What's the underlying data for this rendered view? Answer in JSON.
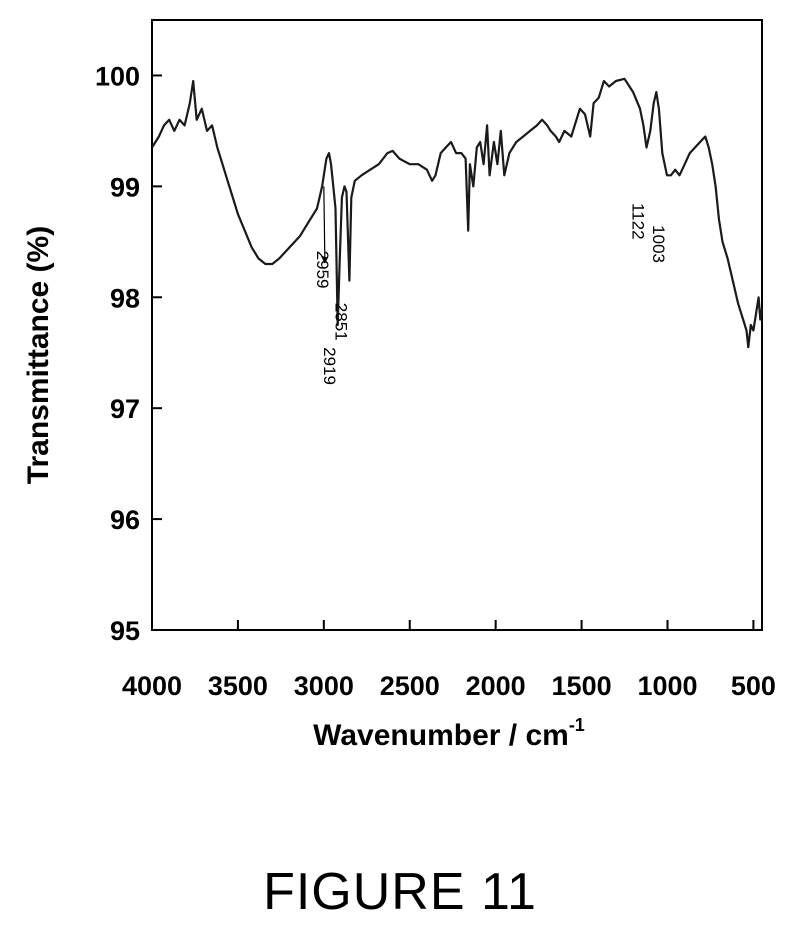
{
  "chart_data": {
    "type": "line",
    "xlabel": "Wavenumber / cm",
    "xlabel_superscript": "-1",
    "ylabel": "Transmittance (%)",
    "xlim": [
      4000,
      450
    ],
    "ylim": [
      95,
      100.5
    ],
    "x_reversed": true,
    "grid": false,
    "x_ticks": [
      4000,
      3500,
      3000,
      2500,
      2000,
      1500,
      1000,
      500
    ],
    "x_tick_labels": [
      "4000",
      "3500",
      "3000",
      "2500",
      "2000",
      "1500",
      "1000",
      "500"
    ],
    "y_ticks": [
      95,
      96,
      97,
      98,
      99,
      100
    ],
    "y_tick_labels": [
      "95",
      "96",
      "97",
      "98",
      "99",
      "100"
    ],
    "series": [
      {
        "color": "#1a1a1a",
        "points": [
          [
            4000,
            99.35
          ],
          [
            3960,
            99.45
          ],
          [
            3930,
            99.55
          ],
          [
            3900,
            99.6
          ],
          [
            3870,
            99.5
          ],
          [
            3840,
            99.6
          ],
          [
            3810,
            99.55
          ],
          [
            3780,
            99.75
          ],
          [
            3760,
            99.95
          ],
          [
            3740,
            99.6
          ],
          [
            3710,
            99.7
          ],
          [
            3680,
            99.5
          ],
          [
            3650,
            99.55
          ],
          [
            3620,
            99.35
          ],
          [
            3590,
            99.2
          ],
          [
            3560,
            99.05
          ],
          [
            3530,
            98.9
          ],
          [
            3500,
            98.75
          ],
          [
            3460,
            98.6
          ],
          [
            3420,
            98.45
          ],
          [
            3380,
            98.35
          ],
          [
            3340,
            98.3
          ],
          [
            3300,
            98.3
          ],
          [
            3260,
            98.35
          ],
          [
            3200,
            98.45
          ],
          [
            3140,
            98.55
          ],
          [
            3080,
            98.7
          ],
          [
            3040,
            98.8
          ],
          [
            3010,
            99.0
          ],
          [
            2985,
            99.25
          ],
          [
            2970,
            99.3
          ],
          [
            2958,
            99.2
          ],
          [
            2945,
            99.0
          ],
          [
            2932,
            98.8
          ],
          [
            2919,
            97.75
          ],
          [
            2908,
            98.3
          ],
          [
            2895,
            98.9
          ],
          [
            2880,
            99.0
          ],
          [
            2868,
            98.95
          ],
          [
            2851,
            98.15
          ],
          [
            2840,
            98.9
          ],
          [
            2820,
            99.05
          ],
          [
            2780,
            99.1
          ],
          [
            2730,
            99.15
          ],
          [
            2680,
            99.2
          ],
          [
            2630,
            99.3
          ],
          [
            2600,
            99.32
          ],
          [
            2560,
            99.25
          ],
          [
            2500,
            99.2
          ],
          [
            2450,
            99.2
          ],
          [
            2400,
            99.15
          ],
          [
            2370,
            99.05
          ],
          [
            2350,
            99.1
          ],
          [
            2320,
            99.3
          ],
          [
            2290,
            99.35
          ],
          [
            2260,
            99.4
          ],
          [
            2230,
            99.3
          ],
          [
            2200,
            99.3
          ],
          [
            2175,
            99.25
          ],
          [
            2160,
            98.6
          ],
          [
            2150,
            99.2
          ],
          [
            2130,
            99.0
          ],
          [
            2110,
            99.35
          ],
          [
            2090,
            99.4
          ],
          [
            2070,
            99.2
          ],
          [
            2050,
            99.55
          ],
          [
            2035,
            99.1
          ],
          [
            2010,
            99.4
          ],
          [
            1990,
            99.2
          ],
          [
            1970,
            99.5
          ],
          [
            1950,
            99.1
          ],
          [
            1920,
            99.3
          ],
          [
            1880,
            99.4
          ],
          [
            1840,
            99.45
          ],
          [
            1800,
            99.5
          ],
          [
            1760,
            99.55
          ],
          [
            1730,
            99.6
          ],
          [
            1700,
            99.55
          ],
          [
            1680,
            99.5
          ],
          [
            1650,
            99.45
          ],
          [
            1630,
            99.4
          ],
          [
            1600,
            99.5
          ],
          [
            1560,
            99.45
          ],
          [
            1540,
            99.55
          ],
          [
            1510,
            99.7
          ],
          [
            1480,
            99.65
          ],
          [
            1450,
            99.45
          ],
          [
            1430,
            99.75
          ],
          [
            1400,
            99.8
          ],
          [
            1370,
            99.95
          ],
          [
            1340,
            99.9
          ],
          [
            1300,
            99.95
          ],
          [
            1250,
            99.97
          ],
          [
            1200,
            99.85
          ],
          [
            1160,
            99.7
          ],
          [
            1140,
            99.55
          ],
          [
            1122,
            99.35
          ],
          [
            1100,
            99.5
          ],
          [
            1080,
            99.75
          ],
          [
            1065,
            99.85
          ],
          [
            1050,
            99.7
          ],
          [
            1030,
            99.3
          ],
          [
            1010,
            99.15
          ],
          [
            1003,
            99.1
          ],
          [
            980,
            99.1
          ],
          [
            955,
            99.15
          ],
          [
            930,
            99.1
          ],
          [
            900,
            99.2
          ],
          [
            870,
            99.3
          ],
          [
            840,
            99.35
          ],
          [
            810,
            99.4
          ],
          [
            780,
            99.45
          ],
          [
            760,
            99.35
          ],
          [
            740,
            99.2
          ],
          [
            720,
            99.0
          ],
          [
            700,
            98.7
          ],
          [
            680,
            98.5
          ],
          [
            650,
            98.35
          ],
          [
            620,
            98.15
          ],
          [
            590,
            97.95
          ],
          [
            560,
            97.8
          ],
          [
            540,
            97.7
          ],
          [
            530,
            97.55
          ],
          [
            515,
            97.75
          ],
          [
            500,
            97.7
          ],
          [
            485,
            97.85
          ],
          [
            470,
            98.0
          ],
          [
            460,
            97.8
          ],
          [
            450,
            97.9
          ]
        ]
      }
    ],
    "annotations": [
      {
        "text": "2959",
        "x": 2959,
        "y": 98.42
      },
      {
        "text": "2919",
        "x": 2919,
        "y": 97.55
      },
      {
        "text": "2851",
        "x": 2851,
        "y": 97.95
      },
      {
        "text": "1122",
        "x": 1122,
        "y": 98.85
      },
      {
        "text": "1003",
        "x": 1003,
        "y": 98.65
      }
    ]
  },
  "caption": "FIGURE 11"
}
